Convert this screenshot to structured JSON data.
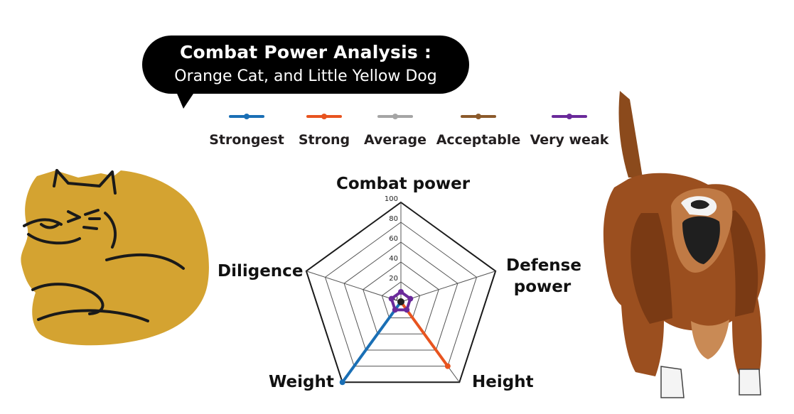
{
  "title": "Combat Power Analysis :",
  "subtitle": "Orange Cat, and Little Yellow Dog",
  "legend": [
    {
      "name": "Strongest",
      "color": "#1a6fb5"
    },
    {
      "name": "Strong",
      "color": "#e8541f"
    },
    {
      "name": "Average",
      "color": "#a5a5a5"
    },
    {
      "name": "Acceptable",
      "color": "#8b5a2b"
    },
    {
      "name": "Very weak",
      "color": "#6a2a9a"
    }
  ],
  "axes": {
    "combat_power": "Combat power",
    "defense_power_line1": "Defense",
    "defense_power_line2": "power",
    "height": "Height",
    "weight": "Weight",
    "diligence": "Diligence"
  },
  "illustrations": {
    "cat": "cat-illustration",
    "dog": "dog-illustration"
  },
  "chart_data": {
    "type": "radar",
    "axes": [
      "Combat power",
      "Defense power",
      "Height",
      "Weight",
      "Diligence"
    ],
    "ticks": [
      "0",
      "20",
      "40",
      "60",
      "80",
      "100"
    ],
    "range": [
      0,
      100
    ],
    "series": [
      {
        "name": "Strongest",
        "color": "#1a6fb5",
        "values": [
          0,
          0,
          0,
          100,
          0
        ]
      },
      {
        "name": "Strong",
        "color": "#e8541f",
        "values": [
          0,
          0,
          80,
          0,
          0
        ]
      },
      {
        "name": "Average",
        "color": "#a5a5a5",
        "values": [
          0,
          0,
          0,
          0,
          0
        ]
      },
      {
        "name": "Acceptable",
        "color": "#8b5a2b",
        "values": [
          0,
          0,
          0,
          0,
          0
        ]
      },
      {
        "name": "Very weak",
        "color": "#6a2a9a",
        "values": [
          10,
          10,
          10,
          10,
          10
        ]
      }
    ]
  }
}
